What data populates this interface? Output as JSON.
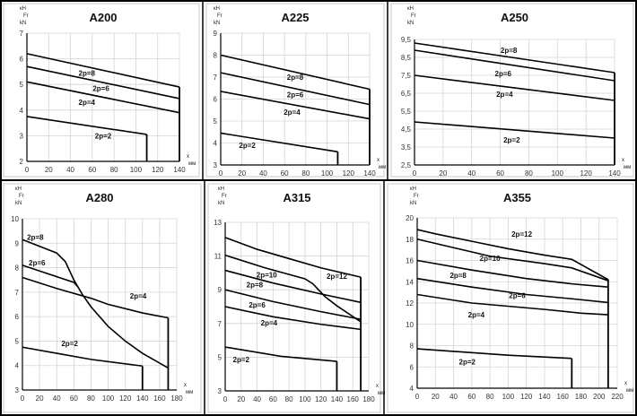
{
  "chart_data": [
    {
      "type": "line",
      "title": "A200",
      "ylabel_lines": [
        "кН",
        "Fr",
        "kN"
      ],
      "xlabel_lines": [
        "x",
        "мм"
      ],
      "xlim": [
        0,
        140
      ],
      "ylim": [
        2,
        7
      ],
      "grid": true,
      "xticks": [
        "0",
        "20",
        "40",
        "60",
        "80",
        "100",
        "120",
        "140"
      ],
      "xtick_values": [
        0,
        20,
        40,
        60,
        80,
        100,
        120,
        140
      ],
      "yticks": [
        "2",
        "3",
        "4",
        "5",
        "6",
        "7"
      ],
      "ytick_values": [
        2,
        3,
        4,
        5,
        6,
        7
      ],
      "series": [
        {
          "name": "2p=8",
          "points": [
            [
              0,
              6.2
            ],
            [
              140,
              4.9
            ]
          ],
          "label_at": [
            55,
            5.45
          ]
        },
        {
          "name": "2p=6",
          "points": [
            [
              0,
              5.7
            ],
            [
              140,
              4.45
            ]
          ],
          "label_at": [
            68,
            4.85
          ]
        },
        {
          "name": "2p=4",
          "points": [
            [
              0,
              5.1
            ],
            [
              140,
              3.9
            ]
          ],
          "label_at": [
            55,
            4.3
          ]
        },
        {
          "name": "2p=2",
          "points": [
            [
              0,
              3.75
            ],
            [
              110,
              3.05
            ]
          ],
          "label_at": [
            70,
            3.0
          ]
        }
      ],
      "limits": [
        {
          "x": 140,
          "from": 2,
          "to": 4.9
        },
        {
          "x": 110,
          "from": 2,
          "to": 3.05
        }
      ]
    },
    {
      "type": "line",
      "title": "A225",
      "ylabel_lines": [
        "кН",
        "Fr",
        "kN"
      ],
      "xlabel_lines": [
        "x",
        "мм"
      ],
      "xlim": [
        0,
        140
      ],
      "ylim": [
        3,
        9
      ],
      "grid": true,
      "xticks": [
        "0",
        "20",
        "40",
        "60",
        "80",
        "100",
        "120",
        "140"
      ],
      "xtick_values": [
        0,
        20,
        40,
        60,
        80,
        100,
        120,
        140
      ],
      "yticks": [
        "3",
        "4",
        "5",
        "6",
        "7",
        "8",
        "9"
      ],
      "ytick_values": [
        3,
        4,
        5,
        6,
        7,
        8,
        9
      ],
      "series": [
        {
          "name": "2p=8",
          "points": [
            [
              0,
              8.0
            ],
            [
              140,
              6.45
            ]
          ],
          "label_at": [
            70,
            7.0
          ]
        },
        {
          "name": "2p=6",
          "points": [
            [
              0,
              7.2
            ],
            [
              140,
              5.75
            ]
          ],
          "label_at": [
            70,
            6.2
          ]
        },
        {
          "name": "2p=4",
          "points": [
            [
              0,
              6.35
            ],
            [
              140,
              5.1
            ]
          ],
          "label_at": [
            67,
            5.4
          ]
        },
        {
          "name": "2p=2",
          "points": [
            [
              0,
              4.45
            ],
            [
              110,
              3.6
            ]
          ],
          "label_at": [
            25,
            3.9
          ]
        }
      ],
      "limits": [
        {
          "x": 140,
          "from": 3,
          "to": 6.45
        },
        {
          "x": 110,
          "from": 3,
          "to": 3.6
        }
      ]
    },
    {
      "type": "line",
      "title": "A250",
      "ylabel_lines": [
        "кН",
        "Fr",
        "kN"
      ],
      "xlabel_lines": [
        "x",
        "мм"
      ],
      "xlim": [
        0,
        140
      ],
      "ylim": [
        2.5,
        9.5
      ],
      "grid": true,
      "xticks": [
        "0",
        "20",
        "40",
        "60",
        "80",
        "100",
        "120",
        "140"
      ],
      "xtick_values": [
        0,
        20,
        40,
        60,
        80,
        100,
        120,
        140
      ],
      "yticks": [
        "2,5",
        "3,5",
        "4,5",
        "5,5",
        "6,5",
        "7,5",
        "8,5",
        "9,5"
      ],
      "ytick_values": [
        2.5,
        3.5,
        4.5,
        5.5,
        6.5,
        7.5,
        8.5,
        9.5
      ],
      "series": [
        {
          "name": "2p=8",
          "points": [
            [
              0,
              9.3
            ],
            [
              140,
              7.65
            ]
          ],
          "label_at": [
            66,
            8.9
          ]
        },
        {
          "name": "2p=6",
          "points": [
            [
              0,
              8.9
            ],
            [
              140,
              7.2
            ]
          ],
          "label_at": [
            62,
            7.6
          ]
        },
        {
          "name": "2p=4",
          "points": [
            [
              0,
              7.5
            ],
            [
              140,
              6.1
            ]
          ],
          "label_at": [
            63,
            6.45
          ]
        },
        {
          "name": "2p=2",
          "points": [
            [
              0,
              4.9
            ],
            [
              140,
              4.0
            ]
          ],
          "label_at": [
            68,
            3.9
          ]
        }
      ],
      "limits": [
        {
          "x": 140,
          "from": 2.5,
          "to": 7.65
        }
      ]
    },
    {
      "type": "line",
      "title": "A280",
      "ylabel_lines": [
        "кН",
        "Fr",
        "kN"
      ],
      "xlabel_lines": [
        "x",
        "мм"
      ],
      "xlim": [
        0,
        180
      ],
      "ylim": [
        3,
        10
      ],
      "grid": true,
      "xticks": [
        "0",
        "20",
        "40",
        "60",
        "80",
        "100",
        "120",
        "140",
        "160",
        "180"
      ],
      "xtick_values": [
        0,
        20,
        40,
        60,
        80,
        100,
        120,
        140,
        160,
        180
      ],
      "yticks": [
        "3",
        "4",
        "5",
        "6",
        "7",
        "8",
        "9",
        "10"
      ],
      "ytick_values": [
        3,
        4,
        5,
        6,
        7,
        8,
        9,
        10
      ],
      "series": [
        {
          "name": "2p=8",
          "points": [
            [
              0,
              9.15
            ],
            [
              40,
              8.6
            ],
            [
              50,
              8.25
            ],
            [
              60,
              7.5
            ],
            [
              70,
              6.9
            ],
            [
              80,
              6.4
            ],
            [
              100,
              5.6
            ],
            [
              120,
              5.0
            ],
            [
              140,
              4.5
            ],
            [
              170,
              3.9
            ]
          ],
          "label_at": [
            15,
            9.25
          ]
        },
        {
          "name": "2p=6",
          "points": [
            [
              0,
              8.1
            ],
            [
              60,
              7.4
            ],
            [
              65,
              7.2
            ]
          ],
          "label_at": [
            17,
            8.2
          ]
        },
        {
          "name": "2p=4",
          "points": [
            [
              0,
              7.6
            ],
            [
              40,
              7.15
            ],
            [
              80,
              6.75
            ],
            [
              100,
              6.5
            ],
            [
              140,
              6.15
            ],
            [
              170,
              5.95
            ]
          ],
          "label_at": [
            135,
            6.85
          ]
        },
        {
          "name": "2p=2",
          "points": [
            [
              0,
              4.75
            ],
            [
              40,
              4.5
            ],
            [
              80,
              4.25
            ],
            [
              140,
              3.98
            ]
          ],
          "label_at": [
            55,
            4.9
          ]
        }
      ],
      "limits": [
        {
          "x": 170,
          "from": 3,
          "to": 5.95
        },
        {
          "x": 140,
          "from": 3,
          "to": 3.98
        }
      ]
    },
    {
      "type": "line",
      "title": "A315",
      "ylabel_lines": [
        "кН",
        "Fr",
        "kN"
      ],
      "xlabel_lines": [
        "x",
        "мм"
      ],
      "xlim": [
        0,
        180
      ],
      "ylim": [
        3,
        13
      ],
      "grid": true,
      "xticks": [
        "0",
        "20",
        "40",
        "60",
        "80",
        "100",
        "120",
        "140",
        "160",
        "180"
      ],
      "xtick_values": [
        0,
        20,
        40,
        60,
        80,
        100,
        120,
        140,
        160,
        180
      ],
      "yticks": [
        "3",
        "5",
        "7",
        "9",
        "11",
        "13"
      ],
      "ytick_values": [
        3,
        5,
        7,
        9,
        11,
        13
      ],
      "series": [
        {
          "name": "2p=12",
          "points": [
            [
              0,
              12.1
            ],
            [
              40,
              11.4
            ],
            [
              80,
              10.85
            ],
            [
              120,
              10.3
            ],
            [
              170,
              9.75
            ]
          ],
          "label_at": [
            140,
            9.8
          ]
        },
        {
          "name": "2p=10",
          "points": [
            [
              0,
              11.05
            ],
            [
              50,
              10.3
            ],
            [
              100,
              9.65
            ],
            [
              110,
              9.35
            ],
            [
              125,
              8.6
            ],
            [
              140,
              8.05
            ],
            [
              170,
              7.1
            ]
          ],
          "label_at": [
            52,
            9.9
          ]
        },
        {
          "name": "2p=8",
          "points": [
            [
              0,
              10.15
            ],
            [
              60,
              9.4
            ],
            [
              120,
              8.75
            ],
            [
              170,
              8.25
            ]
          ],
          "label_at": [
            37,
            9.3
          ]
        },
        {
          "name": "2p=6",
          "points": [
            [
              0,
              9.0
            ],
            [
              60,
              8.3
            ],
            [
              120,
              7.7
            ],
            [
              170,
              7.25
            ]
          ],
          "label_at": [
            40,
            8.1
          ]
        },
        {
          "name": "2p=4",
          "points": [
            [
              0,
              8.0
            ],
            [
              60,
              7.4
            ],
            [
              120,
              6.95
            ],
            [
              170,
              6.65
            ]
          ],
          "label_at": [
            55,
            7.05
          ]
        },
        {
          "name": "2p=2",
          "points": [
            [
              0,
              5.6
            ],
            [
              70,
              5.05
            ],
            [
              140,
              4.75
            ]
          ],
          "label_at": [
            20,
            4.85
          ]
        }
      ],
      "limits": [
        {
          "x": 170,
          "from": 3,
          "to": 9.75
        },
        {
          "x": 140,
          "from": 3,
          "to": 4.75
        }
      ]
    },
    {
      "type": "line",
      "title": "A355",
      "ylabel_lines": [
        "кН",
        "Fr",
        "kN"
      ],
      "xlabel_lines": [
        "x",
        "мм"
      ],
      "xlim": [
        0,
        220
      ],
      "ylim": [
        4,
        20
      ],
      "grid": true,
      "xticks": [
        "0",
        "20",
        "40",
        "60",
        "80",
        "100",
        "120",
        "140",
        "160",
        "180",
        "200",
        "220"
      ],
      "xtick_values": [
        0,
        20,
        40,
        60,
        80,
        100,
        120,
        140,
        160,
        180,
        200,
        220
      ],
      "yticks": [
        "4",
        "6",
        "8",
        "10",
        "12",
        "14",
        "16",
        "18",
        "20"
      ],
      "ytick_values": [
        4,
        6,
        8,
        10,
        12,
        14,
        16,
        18,
        20
      ],
      "series": [
        {
          "name": "2p=12",
          "points": [
            [
              0,
              18.9
            ],
            [
              20,
              18.5
            ],
            [
              60,
              17.8
            ],
            [
              100,
              17.1
            ],
            [
              140,
              16.5
            ],
            [
              170,
              16.1
            ],
            [
              210,
              14.2
            ]
          ],
          "label_at": [
            115,
            18.5
          ]
        },
        {
          "name": "2p=10",
          "points": [
            [
              0,
              18.0
            ],
            [
              40,
              17.2
            ],
            [
              80,
              16.4
            ],
            [
              140,
              15.7
            ],
            [
              170,
              15.3
            ],
            [
              210,
              14.1
            ]
          ],
          "label_at": [
            80,
            16.2
          ]
        },
        {
          "name": "2p=8",
          "points": [
            [
              0,
              16.0
            ],
            [
              60,
              15.1
            ],
            [
              120,
              14.3
            ],
            [
              170,
              13.8
            ],
            [
              210,
              13.5
            ]
          ],
          "label_at": [
            45,
            14.6
          ]
        },
        {
          "name": "2p=6",
          "points": [
            [
              0,
              14.3
            ],
            [
              60,
              13.5
            ],
            [
              120,
              12.8
            ],
            [
              170,
              12.4
            ],
            [
              210,
              12.05
            ]
          ],
          "label_at": [
            110,
            12.7
          ]
        },
        {
          "name": "2p=4",
          "points": [
            [
              0,
              12.8
            ],
            [
              60,
              12.0
            ],
            [
              140,
              11.4
            ],
            [
              180,
              11.05
            ],
            [
              210,
              10.9
            ]
          ],
          "label_at": [
            65,
            10.9
          ]
        },
        {
          "name": "2p=2",
          "points": [
            [
              0,
              7.7
            ],
            [
              100,
              7.1
            ],
            [
              170,
              6.8
            ]
          ],
          "label_at": [
            55,
            6.5
          ]
        }
      ],
      "limits": [
        {
          "x": 210,
          "from": 4,
          "to": 14.2
        },
        {
          "x": 170,
          "from": 4,
          "to": 6.8
        }
      ]
    }
  ]
}
